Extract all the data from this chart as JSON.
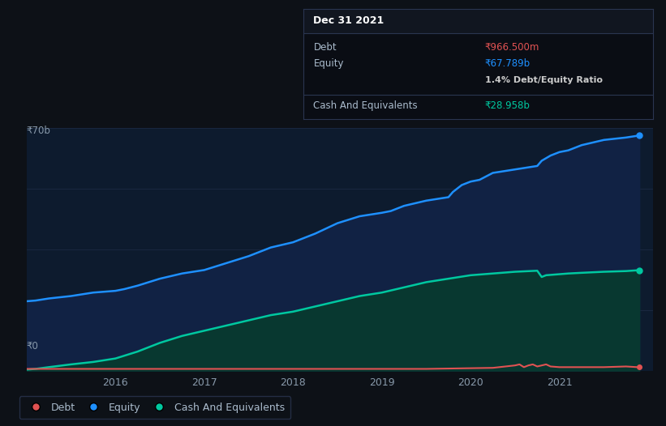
{
  "bg_color": "#0d1117",
  "chart_bg": "#0d1b2e",
  "grid_color": "#1a2840",
  "title_box": {
    "title": "Dec 31 2021",
    "debt_label": "Debt",
    "debt_value": "₹966.500m",
    "equity_label": "Equity",
    "equity_value": "₹67.789b",
    "ratio": "1.4% Debt/Equity Ratio",
    "cash_label": "Cash And Equivalents",
    "cash_value": "₹28.958b"
  },
  "y_label_top": "₹70b",
  "y_label_bottom": "₹0",
  "x_ticks": [
    "2016",
    "2017",
    "2018",
    "2019",
    "2020",
    "2021"
  ],
  "equity_color": "#1e90ff",
  "debt_color": "#e05252",
  "cash_color": "#00c8a0",
  "equity_fill": "#112244",
  "cash_fill": "#083830",
  "ylim": [
    0,
    70
  ],
  "equity_data": {
    "x": [
      2015.0,
      2015.1,
      2015.25,
      2015.5,
      2015.75,
      2016.0,
      2016.1,
      2016.25,
      2016.5,
      2016.75,
      2017.0,
      2017.25,
      2017.5,
      2017.75,
      2018.0,
      2018.25,
      2018.5,
      2018.75,
      2019.0,
      2019.1,
      2019.25,
      2019.5,
      2019.75,
      2019.8,
      2019.9,
      2020.0,
      2020.1,
      2020.25,
      2020.5,
      2020.75,
      2020.8,
      2020.9,
      2021.0,
      2021.1,
      2021.25,
      2021.5,
      2021.75,
      2021.9
    ],
    "y": [
      20.0,
      20.2,
      20.8,
      21.5,
      22.5,
      23.0,
      23.5,
      24.5,
      26.5,
      28.0,
      29.0,
      31.0,
      33.0,
      35.5,
      37.0,
      39.5,
      42.5,
      44.5,
      45.5,
      46.0,
      47.5,
      49.0,
      50.0,
      51.5,
      53.5,
      54.5,
      55.0,
      57.0,
      58.0,
      59.0,
      60.5,
      62.0,
      63.0,
      63.5,
      65.0,
      66.5,
      67.2,
      67.789
    ]
  },
  "cash_data": {
    "x": [
      2015.0,
      2015.1,
      2015.25,
      2015.5,
      2015.75,
      2016.0,
      2016.25,
      2016.5,
      2016.75,
      2017.0,
      2017.25,
      2017.5,
      2017.75,
      2018.0,
      2018.25,
      2018.5,
      2018.75,
      2019.0,
      2019.25,
      2019.5,
      2019.75,
      2020.0,
      2020.25,
      2020.5,
      2020.75,
      2020.8,
      2020.85,
      2021.0,
      2021.1,
      2021.25,
      2021.5,
      2021.75,
      2021.9
    ],
    "y": [
      0.3,
      0.5,
      1.0,
      1.8,
      2.5,
      3.5,
      5.5,
      8.0,
      10.0,
      11.5,
      13.0,
      14.5,
      16.0,
      17.0,
      18.5,
      20.0,
      21.5,
      22.5,
      24.0,
      25.5,
      26.5,
      27.5,
      28.0,
      28.5,
      28.8,
      27.0,
      27.5,
      27.8,
      28.0,
      28.2,
      28.5,
      28.7,
      28.958
    ]
  },
  "debt_data": {
    "x": [
      2015.0,
      2015.5,
      2015.75,
      2016.0,
      2016.5,
      2016.75,
      2017.0,
      2017.5,
      2017.75,
      2018.0,
      2018.5,
      2018.75,
      2019.0,
      2019.5,
      2019.75,
      2020.0,
      2020.25,
      2020.5,
      2020.55,
      2020.6,
      2020.65,
      2020.7,
      2020.75,
      2020.8,
      2020.85,
      2020.9,
      2021.0,
      2021.5,
      2021.75,
      2021.9
    ],
    "y": [
      0.5,
      0.5,
      0.5,
      0.5,
      0.5,
      0.5,
      0.5,
      0.5,
      0.5,
      0.5,
      0.5,
      0.5,
      0.5,
      0.5,
      0.6,
      0.7,
      0.8,
      1.5,
      1.8,
      1.0,
      1.5,
      1.8,
      1.2,
      1.5,
      1.8,
      1.2,
      1.0,
      1.0,
      1.2,
      0.9667
    ]
  },
  "legend_items": [
    {
      "label": "Debt",
      "color": "#e05252"
    },
    {
      "label": "Equity",
      "color": "#1e90ff"
    },
    {
      "label": "Cash And Equivalents",
      "color": "#00c8a0"
    }
  ]
}
